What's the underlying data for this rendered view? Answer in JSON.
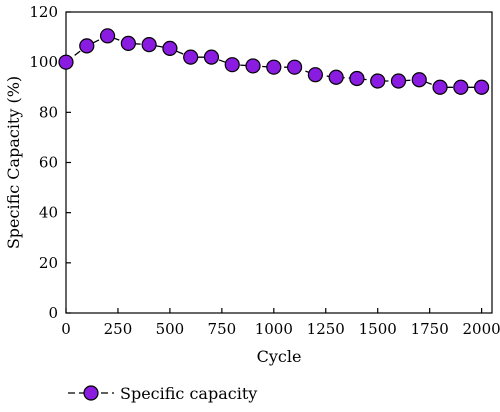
{
  "chart_data": {
    "type": "line",
    "xlabel": "Cycle",
    "ylabel": "Specific Capacity (%)",
    "xlim": [
      0,
      2050
    ],
    "ylim": [
      0,
      120
    ],
    "xticks": [
      0,
      250,
      500,
      750,
      1000,
      1250,
      1500,
      1750,
      2000
    ],
    "yticks": [
      0,
      20,
      40,
      60,
      80,
      100,
      120
    ],
    "grid": false,
    "legend_position": "bottom-left",
    "series": [
      {
        "name": "Specific capacity",
        "color": "#8a1be0",
        "x": [
          0,
          100,
          200,
          300,
          400,
          500,
          600,
          700,
          800,
          900,
          1000,
          1100,
          1200,
          1300,
          1400,
          1500,
          1600,
          1700,
          1800,
          1900,
          2000
        ],
        "y": [
          100,
          106.5,
          110.5,
          107.5,
          107,
          105.5,
          102,
          102,
          99,
          98.5,
          98,
          98,
          95,
          94,
          93.5,
          92.5,
          92.5,
          93,
          90,
          90,
          90
        ]
      }
    ]
  }
}
